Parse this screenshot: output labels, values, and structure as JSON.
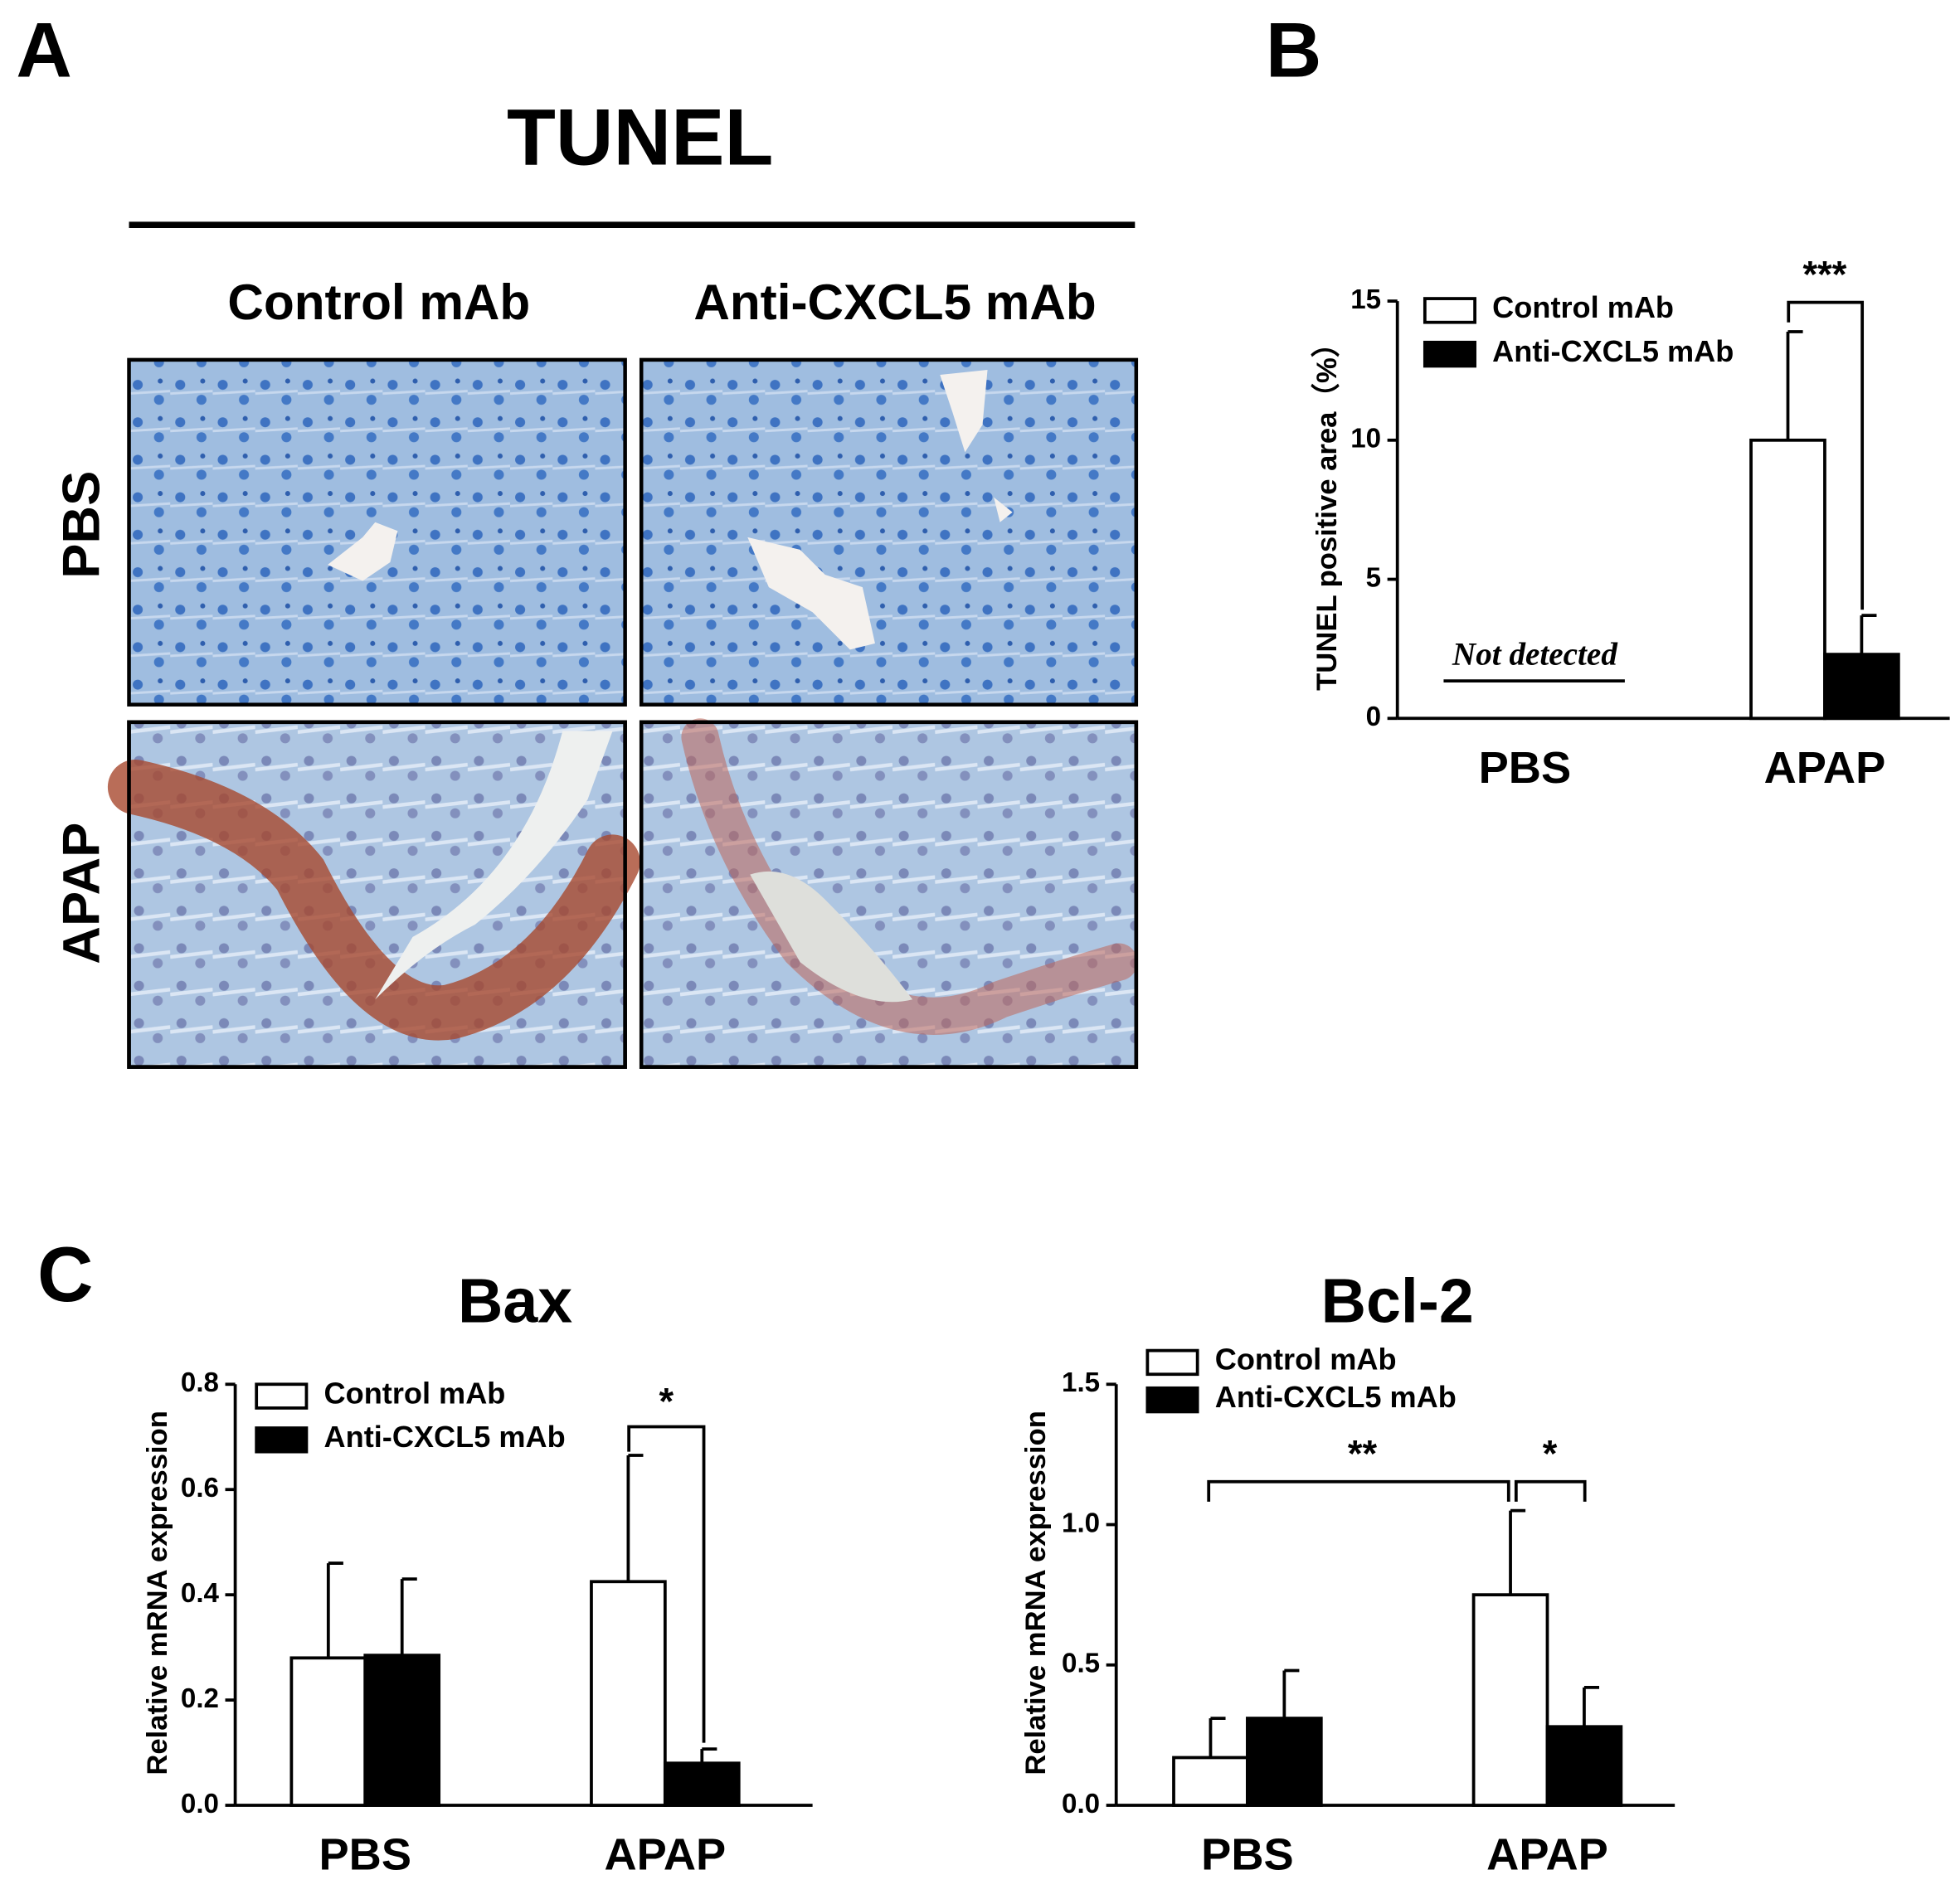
{
  "panel_a": {
    "label": "A",
    "title": "TUNEL",
    "columns": [
      "Control mAb",
      "Anti-CXCL5 mAb"
    ],
    "rows": [
      "PBS",
      "APAP"
    ]
  },
  "chart_data": [
    {
      "type": "bar",
      "panel_label": "B",
      "ylabel": "TUNEL positive area（%）",
      "categories": [
        "PBS",
        "APAP"
      ],
      "series": [
        {
          "name": "Control mAb",
          "color": "#ffffff",
          "values": [
            null,
            10.0
          ],
          "errors": [
            null,
            3.9
          ]
        },
        {
          "name": "Anti-CXCL5 mAb",
          "color": "#000000",
          "values": [
            null,
            2.3
          ],
          "errors": [
            null,
            1.4
          ]
        }
      ],
      "ylim": [
        0,
        15
      ],
      "yticks": [
        0,
        5,
        10,
        15
      ],
      "annotations": [
        "Not detected",
        "***"
      ]
    },
    {
      "type": "bar",
      "panel_label": "C",
      "title": "Bax",
      "ylabel": "Relative mRNA expression",
      "categories": [
        "PBS",
        "APAP"
      ],
      "series": [
        {
          "name": "Control mAb",
          "color": "#ffffff",
          "values": [
            0.28,
            0.425
          ],
          "errors": [
            0.18,
            0.24
          ]
        },
        {
          "name": "Anti-CXCL5 mAb",
          "color": "#000000",
          "values": [
            0.285,
            0.08
          ],
          "errors": [
            0.145,
            0.027
          ]
        }
      ],
      "ylim": [
        0,
        0.8
      ],
      "yticks": [
        {
          "value": 0,
          "label": "0.0"
        },
        {
          "value": 0.2,
          "label": "0.2"
        },
        {
          "value": 0.4,
          "label": "0.4"
        },
        {
          "value": 0.6,
          "label": "0.6"
        },
        {
          "value": 0.8,
          "label": "0.8"
        }
      ],
      "annotations": [
        "*"
      ]
    },
    {
      "type": "bar",
      "title": "Bcl-2",
      "ylabel": "Relative mRNA expression",
      "categories": [
        "PBS",
        "APAP"
      ],
      "series": [
        {
          "name": "Control mAb",
          "color": "#ffffff",
          "values": [
            0.17,
            0.75
          ],
          "errors": [
            0.14,
            0.3
          ]
        },
        {
          "name": "Anti-CXCL5 mAb",
          "color": "#000000",
          "values": [
            0.31,
            0.28
          ],
          "errors": [
            0.17,
            0.14
          ]
        }
      ],
      "ylim": [
        0,
        1.5
      ],
      "yticks": [
        {
          "value": 0,
          "label": "0.0"
        },
        {
          "value": 0.5,
          "label": "0.5"
        },
        {
          "value": 1.0,
          "label": "1.0"
        },
        {
          "value": 1.5,
          "label": "1.5"
        }
      ],
      "annotations": [
        "**",
        "*"
      ]
    }
  ]
}
